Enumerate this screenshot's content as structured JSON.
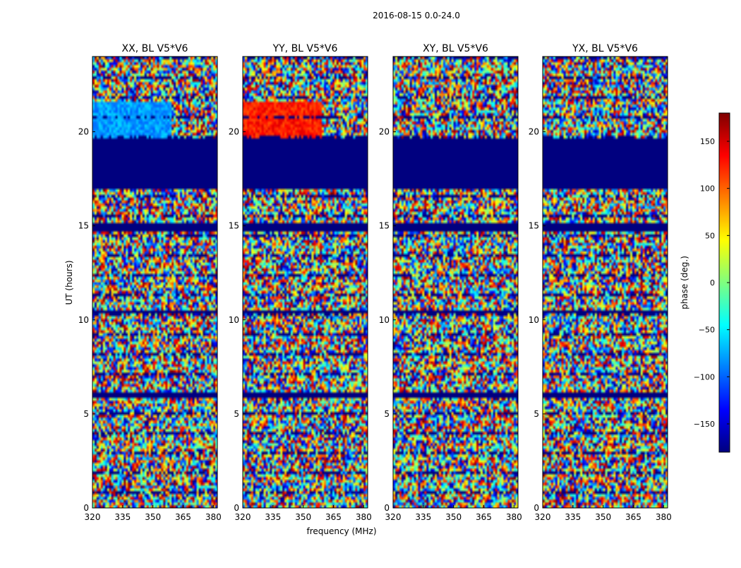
{
  "figure": {
    "suptitle": "2016-08-15 0.0-24.0"
  },
  "chart_data": {
    "type": "heatmap",
    "title": "2016-08-15 0.0-24.0",
    "xlabel": "frequency (MHz)",
    "ylabel": "UT (hours)",
    "xlim": [
      320,
      382
    ],
    "ylim": [
      0,
      24
    ],
    "xticks": [
      320,
      335,
      350,
      365,
      380
    ],
    "yticks": [
      0,
      5,
      10,
      15,
      20
    ],
    "panels": [
      {
        "name": "XX",
        "title": "XX, BL V5*V6"
      },
      {
        "name": "YY",
        "title": "YY, BL V5*V6"
      },
      {
        "name": "XY",
        "title": "XY, BL V5*V6"
      },
      {
        "name": "YX",
        "title": "YX, BL V5*V6"
      }
    ],
    "colorbar": {
      "label": "phase (deg.)",
      "range": [
        -180,
        180
      ],
      "ticks": [
        150,
        100,
        50,
        0,
        -50,
        -100,
        -150
      ],
      "tick_labels": [
        "150",
        "100",
        "50",
        "0",
        "−50",
        "−100",
        "−150"
      ],
      "colormap": "jet",
      "colors": [
        "#00007f",
        "#0000ff",
        "#007fff",
        "#00ffff",
        "#7fff7f",
        "#ffff00",
        "#ff7f00",
        "#ff0000",
        "#7f0000"
      ]
    },
    "flagged_ut_ranges": [
      [
        17.0,
        19.6
      ],
      [
        14.75,
        15.2
      ],
      [
        5.9,
        6.2
      ],
      [
        10.3,
        10.45
      ]
    ],
    "flag_color": "#00007f"
  }
}
